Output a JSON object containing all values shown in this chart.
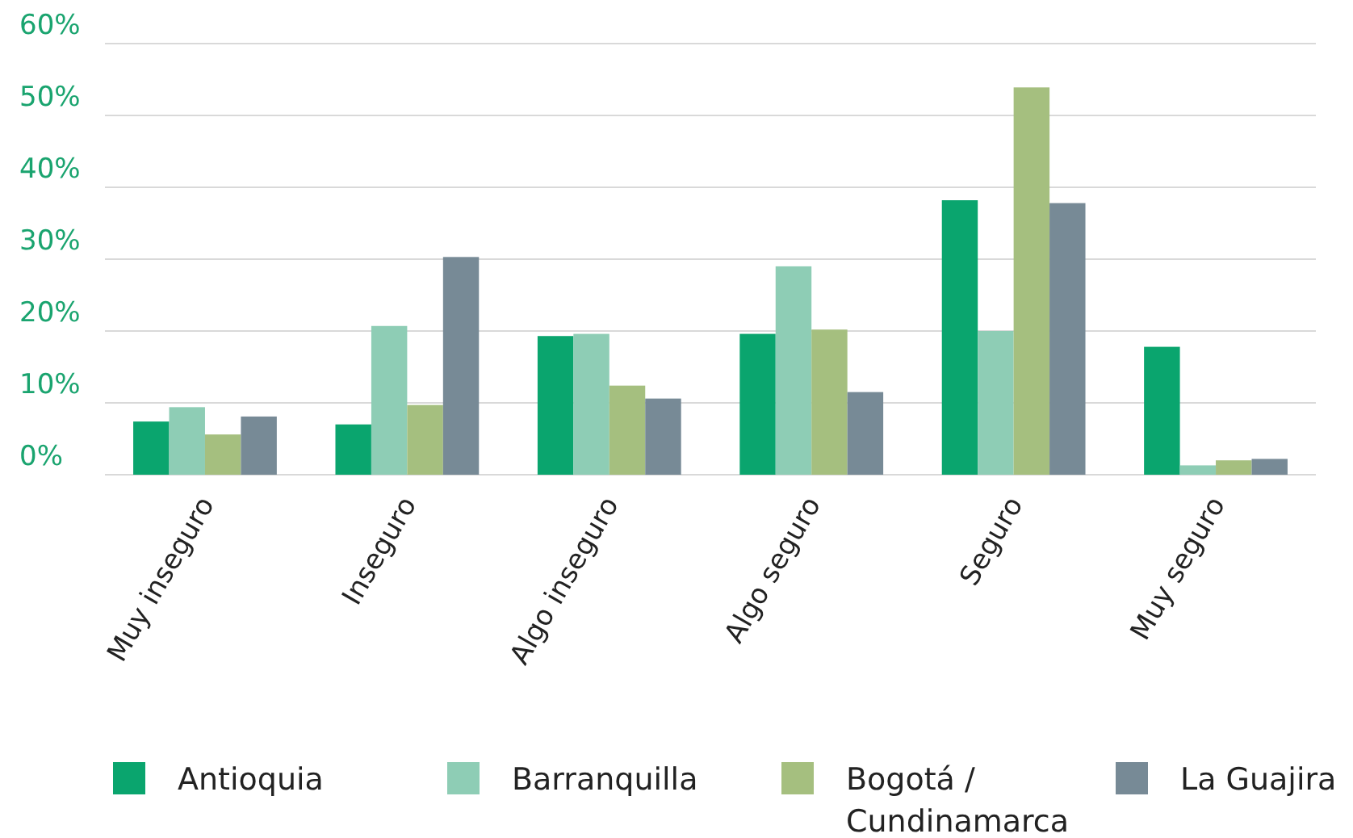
{
  "chart_data": {
    "type": "bar",
    "categories": [
      "Muy inseguro",
      "Inseguro",
      "Algo inseguro",
      "Algo seguro",
      "Seguro",
      "Muy seguro"
    ],
    "series": [
      {
        "name": "Antioquia",
        "color": "#0aa56e",
        "values": [
          7.4,
          7.0,
          19.3,
          19.6,
          38.2,
          17.8
        ]
      },
      {
        "name": "Barranquilla",
        "color": "#8ecdb5",
        "values": [
          9.4,
          20.7,
          19.6,
          29.0,
          20.0,
          1.3
        ]
      },
      {
        "name": "Bogotá / Cundinamarca",
        "color": "#a5bf7f",
        "values": [
          5.6,
          9.7,
          12.4,
          20.2,
          53.9,
          2.0
        ]
      },
      {
        "name": "La Guajira",
        "color": "#778a96",
        "values": [
          8.1,
          30.3,
          10.6,
          11.5,
          37.8,
          2.2
        ]
      }
    ],
    "ylim": [
      0,
      60
    ],
    "yticks": [
      {
        "value": 0,
        "label": "0%"
      },
      {
        "value": 10,
        "label": "10%"
      },
      {
        "value": 20,
        "label": "20%"
      },
      {
        "value": 30,
        "label": "30%"
      },
      {
        "value": 40,
        "label": "40%"
      },
      {
        "value": 50,
        "label": "50%"
      },
      {
        "value": 60,
        "label": "60%"
      }
    ],
    "grid": "y",
    "legend": "bottom"
  }
}
